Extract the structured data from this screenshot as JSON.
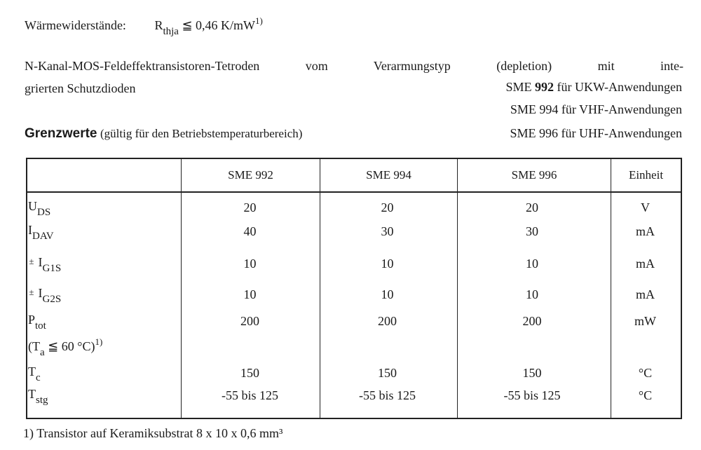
{
  "thermal": {
    "label": "Wärmewiderstände:",
    "symbol": "R",
    "symbol_sub": "thja",
    "relation": "≦",
    "value": "0,46 K/mW",
    "footnote_ref": "1)"
  },
  "intro": {
    "line1": "N-Kanal-MOS-Feldeffektransistoren-Tetroden vom Verarmungstyp (depletion) mit inte-",
    "line2": "grierten Schutzdioden"
  },
  "variants": [
    {
      "type": "SME",
      "number": "992",
      "use": "für UKW-Anwendungen"
    },
    {
      "type": "SME",
      "number": "994",
      "use": "für VHF-Anwendungen"
    },
    {
      "type": "SME",
      "number": "996",
      "use": "für UHF-Anwendungen"
    }
  ],
  "section": {
    "title": "Grenzwerte",
    "subtitle": "(gültig für den Betriebstemperaturbereich)"
  },
  "table": {
    "headers": [
      "",
      "SME 992",
      "SME 994",
      "SME 996",
      "Einheit"
    ],
    "rows": [
      {
        "prefix": "",
        "symbol": "U",
        "sub": "DS",
        "values": [
          "20",
          "20",
          "20"
        ],
        "unit": "V"
      },
      {
        "prefix": "",
        "symbol": "I",
        "sub": "DAV",
        "values": [
          "40",
          "30",
          "30"
        ],
        "unit": "mA"
      },
      {
        "prefix": "±",
        "symbol": "I",
        "sub": "G1S",
        "values": [
          "10",
          "10",
          "10"
        ],
        "unit": "mA"
      },
      {
        "prefix": "±",
        "symbol": "I",
        "sub": "G2S",
        "values": [
          "10",
          "10",
          "10"
        ],
        "unit": "mA"
      },
      {
        "prefix": "",
        "symbol": "P",
        "sub": "tot",
        "values": [
          "200",
          "200",
          "200"
        ],
        "unit": "mW",
        "condition": {
          "open": "(T",
          "sub": "a",
          "rest": " ≦ 60 °C)",
          "ref": "1)"
        }
      },
      {
        "prefix": "",
        "symbol": "T",
        "sub": "c",
        "values": [
          "150",
          "150",
          "150"
        ],
        "unit": "°C"
      },
      {
        "prefix": "",
        "symbol": "T",
        "sub": "stg",
        "values": [
          "-55 bis 125",
          "-55 bis 125",
          "-55 bis 125"
        ],
        "unit": "°C"
      }
    ]
  },
  "footnote": {
    "mark": "1)",
    "text": "Transistor auf Keramiksubstrat 8 x 10 x 0,6 mm³"
  }
}
